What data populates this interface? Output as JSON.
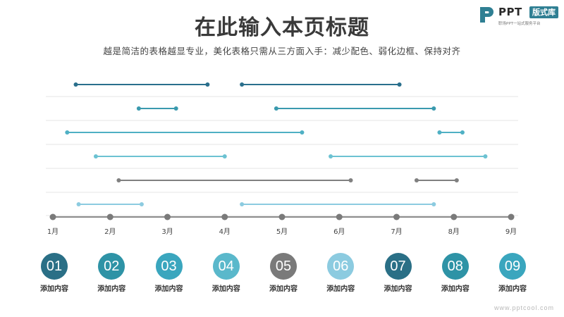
{
  "header": {
    "title": "在此输入本页标题",
    "subtitle": "越是简洁的表格越显专业，美化表格只需从三方面入手：减少配色、弱化边框、保持对齐"
  },
  "logo": {
    "brand": "PPT",
    "badge": "版式库",
    "tagline": "职场PPT一站式服务平台"
  },
  "timeline": {
    "months": [
      "1月",
      "2月",
      "3月",
      "4月",
      "5月",
      "6月",
      "7月",
      "8月",
      "9月"
    ],
    "rows": [
      {
        "color": "#2a6f8c",
        "segments": [
          [
            1.4,
            3.7
          ],
          [
            4.3,
            7.05
          ]
        ]
      },
      {
        "color": "#3a9aae",
        "segments": [
          [
            2.5,
            3.15
          ],
          [
            4.9,
            7.65
          ]
        ]
      },
      {
        "color": "#4fb0c4",
        "segments": [
          [
            1.25,
            5.35
          ],
          [
            7.75,
            8.15
          ]
        ]
      },
      {
        "color": "#6cc2d2",
        "segments": [
          [
            1.75,
            4.0
          ],
          [
            5.85,
            8.55
          ]
        ]
      },
      {
        "color": "#808080",
        "segments": [
          [
            2.15,
            6.2
          ],
          [
            7.35,
            8.05
          ]
        ]
      },
      {
        "color": "#8ccbe0",
        "segments": [
          [
            1.45,
            2.55
          ],
          [
            4.3,
            7.65
          ]
        ]
      }
    ]
  },
  "items": [
    {
      "number": "01",
      "label": "添加内容",
      "color": "#2a6f86"
    },
    {
      "number": "02",
      "label": "添加内容",
      "color": "#2e93a6"
    },
    {
      "number": "03",
      "label": "添加内容",
      "color": "#3aa6be"
    },
    {
      "number": "04",
      "label": "添加内容",
      "color": "#5ab8cb"
    },
    {
      "number": "05",
      "label": "添加内容",
      "color": "#7a7a7a"
    },
    {
      "number": "06",
      "label": "添加内容",
      "color": "#8ccbe0"
    },
    {
      "number": "07",
      "label": "添加内容",
      "color": "#2a6f86"
    },
    {
      "number": "08",
      "label": "添加内容",
      "color": "#2e93a6"
    },
    {
      "number": "09",
      "label": "添加内容",
      "color": "#3aa6be"
    }
  ],
  "watermark": "www.pptcool.com"
}
